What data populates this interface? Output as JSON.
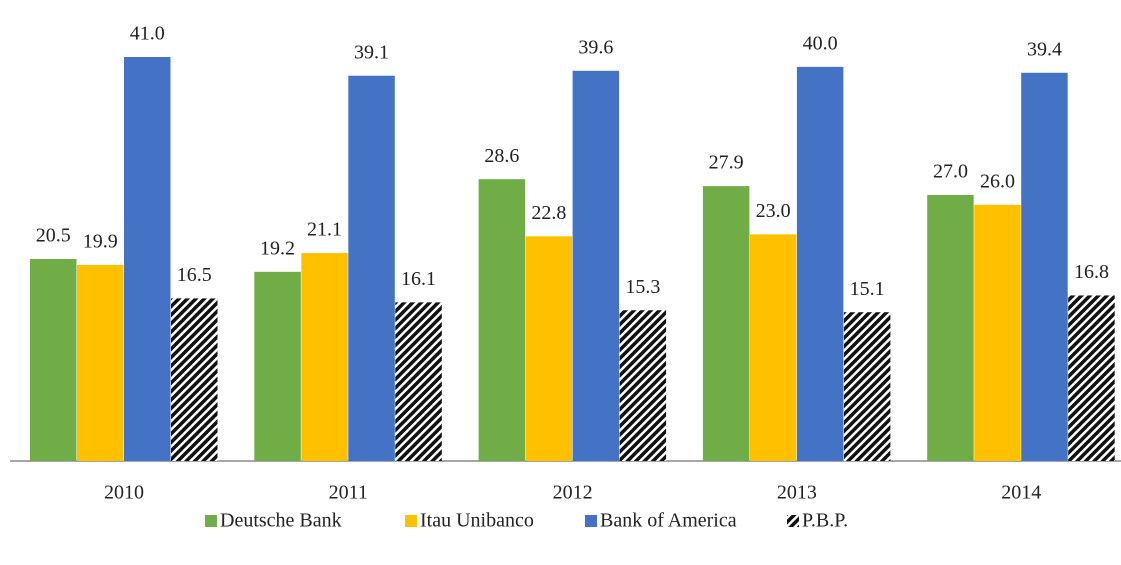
{
  "chart_data": {
    "type": "bar",
    "categories": [
      "2010",
      "2011",
      "2012",
      "2013",
      "2014"
    ],
    "series": [
      {
        "name": "Deutsche Bank",
        "color": "#70ad47",
        "values": [
          20.5,
          19.2,
          28.6,
          27.9,
          27.0
        ],
        "value_labels": [
          "20.5",
          "19.2",
          "28.6",
          "27.9",
          "27.0"
        ]
      },
      {
        "name": "Itau Unibanco",
        "color": "#ffc000",
        "values": [
          19.9,
          21.1,
          22.8,
          23.0,
          26.0
        ],
        "value_labels": [
          "19.9",
          "21.1",
          "22.8",
          "23.0",
          "26.0"
        ]
      },
      {
        "name": "Bank of America",
        "color": "#4472c4",
        "values": [
          41.0,
          39.1,
          39.6,
          40.0,
          39.4
        ],
        "value_labels": [
          "41.0",
          "39.1",
          "39.6",
          "40.0",
          "39.4"
        ]
      },
      {
        "name": "P.B.P.",
        "color": "#000000",
        "pattern": "hatch",
        "values": [
          16.5,
          16.1,
          15.3,
          15.1,
          16.8
        ],
        "value_labels": [
          "16.5",
          "16.1",
          "15.3",
          "15.1",
          "16.8"
        ]
      }
    ],
    "legend": "bottom"
  }
}
